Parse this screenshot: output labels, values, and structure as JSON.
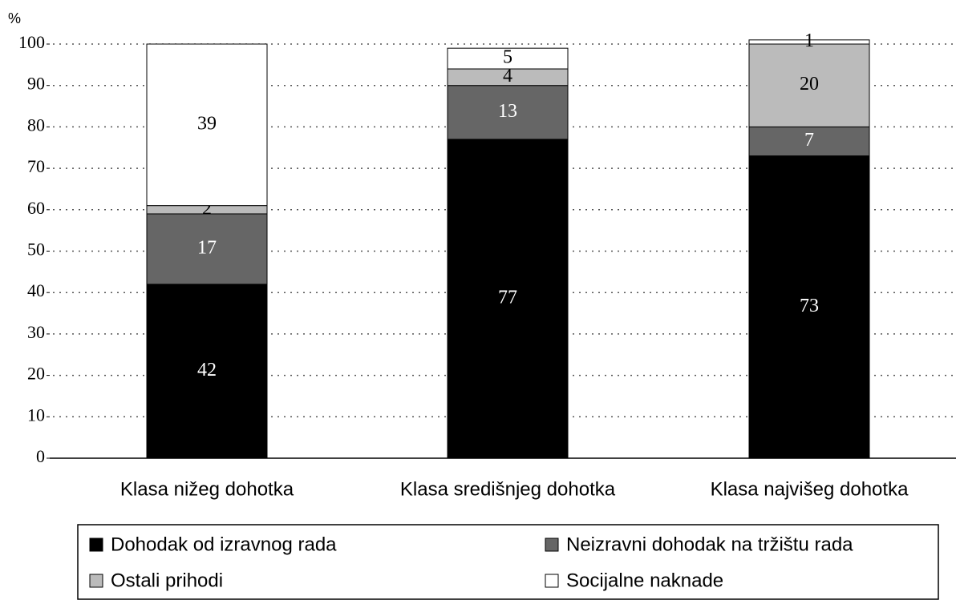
{
  "chart_data": {
    "type": "stacked_bar",
    "y_label": "%",
    "categories": [
      "Klasa nižeg dohotka",
      "Klasa središnjeg dohotka",
      "Klasa najvišeg dohotka"
    ],
    "series": [
      {
        "name": "Dohodak od izravnog rada",
        "color": "#000000",
        "values": [
          42,
          77,
          73
        ]
      },
      {
        "name": "Neizravni dohodak na tržištu rada",
        "color": "#666666",
        "values": [
          17,
          13,
          7
        ]
      },
      {
        "name": "Ostali prihodi",
        "color": "#bbbbbb",
        "values": [
          2,
          4,
          20
        ]
      },
      {
        "name": "Socijalne naknade",
        "color": "#ffffff",
        "values": [
          39,
          5,
          1
        ]
      }
    ],
    "ylim": [
      0,
      100
    ],
    "yticks": [
      0,
      10,
      20,
      30,
      40,
      50,
      60,
      70,
      80,
      90,
      100
    ],
    "grid": true
  }
}
